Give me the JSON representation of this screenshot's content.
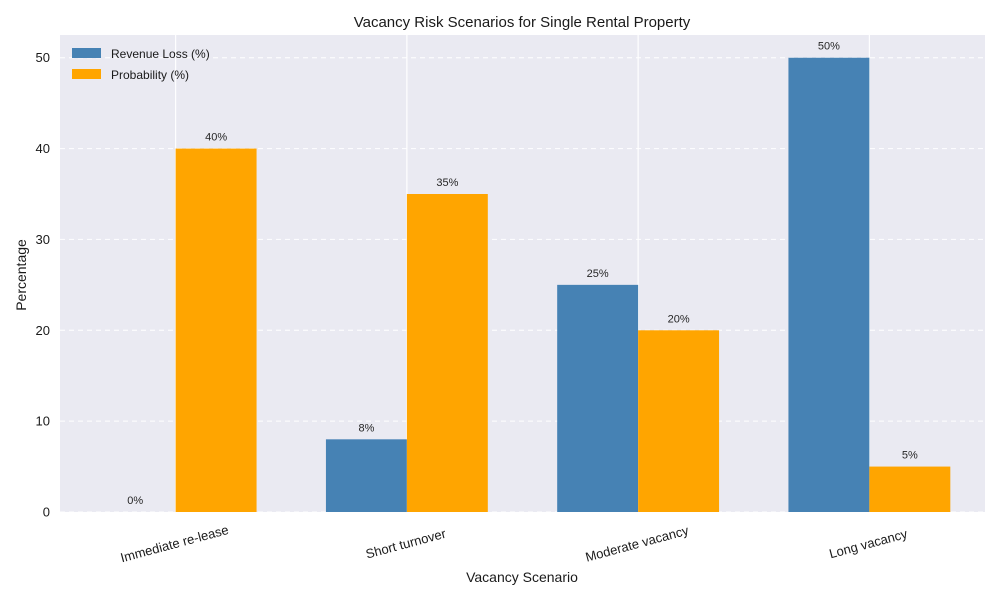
{
  "chart_data": {
    "type": "bar",
    "title": "Vacancy Risk Scenarios for Single Rental Property",
    "xlabel": "Vacancy Scenario",
    "ylabel": "Percentage",
    "ylim": [
      0,
      52.5
    ],
    "yticks": [
      0,
      10,
      20,
      30,
      40,
      50
    ],
    "grid": "y-dashed",
    "legend_position": "top-left",
    "categories": [
      "Immediate re-lease",
      "Short turnover",
      "Moderate vacancy",
      "Long vacancy"
    ],
    "series": [
      {
        "name": "Revenue Loss (%)",
        "color": "#4682b4",
        "values": [
          0,
          8,
          25,
          50
        ],
        "labels": [
          "0%",
          "8%",
          "25%",
          "50%"
        ]
      },
      {
        "name": "Probability (%)",
        "color": "#ffa500",
        "values": [
          40,
          35,
          20,
          5
        ],
        "labels": [
          "40%",
          "35%",
          "20%",
          "5%"
        ]
      }
    ]
  },
  "style": {
    "plot_bg": "#eaeaf2",
    "grid_color": "#ffffff"
  }
}
